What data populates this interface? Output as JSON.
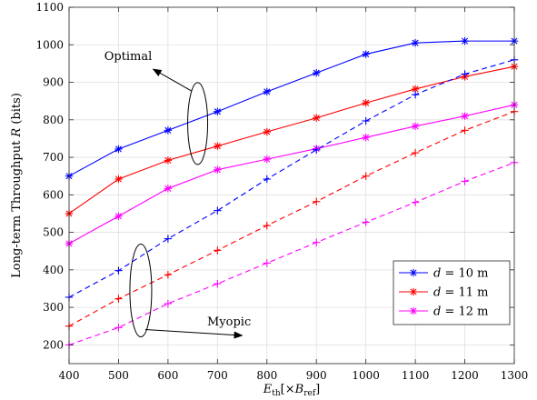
{
  "chart_data": {
    "type": "line",
    "xlabel": "E_th[×B_ref]",
    "xlabel_parts": {
      "main": "E",
      "main_sub": "th",
      "bracket_open": "[×",
      "var": "B",
      "var_sub": "ref",
      "bracket_close": "]"
    },
    "ylabel": "Long-term Throughput R (bits)",
    "ylabel_parts": {
      "prefix": "Long-term Throughput ",
      "var": "R",
      "suffix": " (bits)"
    },
    "x": [
      400,
      500,
      600,
      700,
      800,
      900,
      1000,
      1100,
      1200,
      1300
    ],
    "xlim": [
      400,
      1300
    ],
    "ylim": [
      150,
      1100
    ],
    "xticks": [
      400,
      500,
      600,
      700,
      800,
      900,
      1000,
      1100,
      1200,
      1300
    ],
    "yticks": [
      200,
      300,
      400,
      500,
      600,
      700,
      800,
      900,
      1000,
      1100
    ],
    "grid": true,
    "legend_position": "lower-right",
    "series": [
      {
        "name": "d = 10 m",
        "color": "#0000ff",
        "style": "solid",
        "marker": "asterisk",
        "values": [
          650,
          722,
          772,
          822,
          875,
          925,
          975,
          1005,
          1010,
          1010
        ]
      },
      {
        "name": "d = 11 m",
        "color": "#ff0000",
        "style": "solid",
        "marker": "asterisk",
        "values": [
          550,
          642,
          692,
          730,
          768,
          805,
          845,
          882,
          915,
          942
        ]
      },
      {
        "name": "d = 12 m",
        "color": "#ff00ff",
        "style": "solid",
        "marker": "asterisk",
        "values": [
          470,
          543,
          617,
          667,
          695,
          723,
          753,
          783,
          810,
          840
        ]
      },
      {
        "name": "",
        "color": "#0000ff",
        "style": "dashed",
        "marker": "plus",
        "values": [
          327,
          398,
          483,
          558,
          642,
          720,
          797,
          867,
          922,
          960
        ]
      },
      {
        "name": "",
        "color": "#ff0000",
        "style": "dashed",
        "marker": "plus",
        "values": [
          250,
          323,
          387,
          452,
          518,
          582,
          650,
          712,
          772,
          822
        ]
      },
      {
        "name": "",
        "color": "#ff00ff",
        "style": "dashed",
        "marker": "plus",
        "values": [
          200,
          246,
          310,
          363,
          418,
          473,
          527,
          580,
          636,
          686
        ]
      }
    ],
    "legend": [
      {
        "var": "d",
        "rest": " = 10 m",
        "color": "#0000ff"
      },
      {
        "var": "d",
        "rest": " = 11 m",
        "color": "#ff0000"
      },
      {
        "var": "d",
        "rest": " = 12 m",
        "color": "#ff00ff"
      }
    ],
    "annotations": [
      {
        "text": "Optimal",
        "ellipse_center": [
          660,
          790
        ],
        "arrow_to": [
          570,
          935
        ]
      },
      {
        "text": "Myopic",
        "ellipse_center": [
          545,
          345
        ],
        "arrow_to": [
          750,
          225
        ]
      }
    ]
  }
}
